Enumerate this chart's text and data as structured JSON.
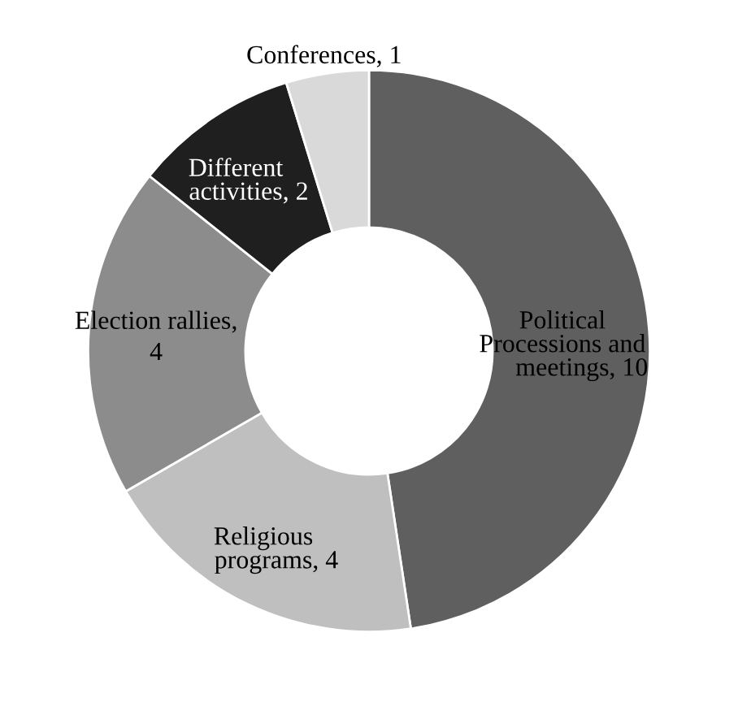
{
  "chart_data": {
    "type": "donut",
    "categories": [
      "Political Processions and meetings",
      "Religious programs",
      "Election rallies",
      "Different activities",
      "Conferences"
    ],
    "values": [
      10,
      4,
      4,
      2,
      1
    ],
    "colors": [
      "#5f5f5f",
      "#bfbfbf",
      "#8c8c8c",
      "#1f1f1f",
      "#d9d9d9"
    ],
    "value_labels": [
      ", 10",
      ", 4",
      ", 4",
      ", 2",
      ", 1"
    ],
    "legend": false
  }
}
